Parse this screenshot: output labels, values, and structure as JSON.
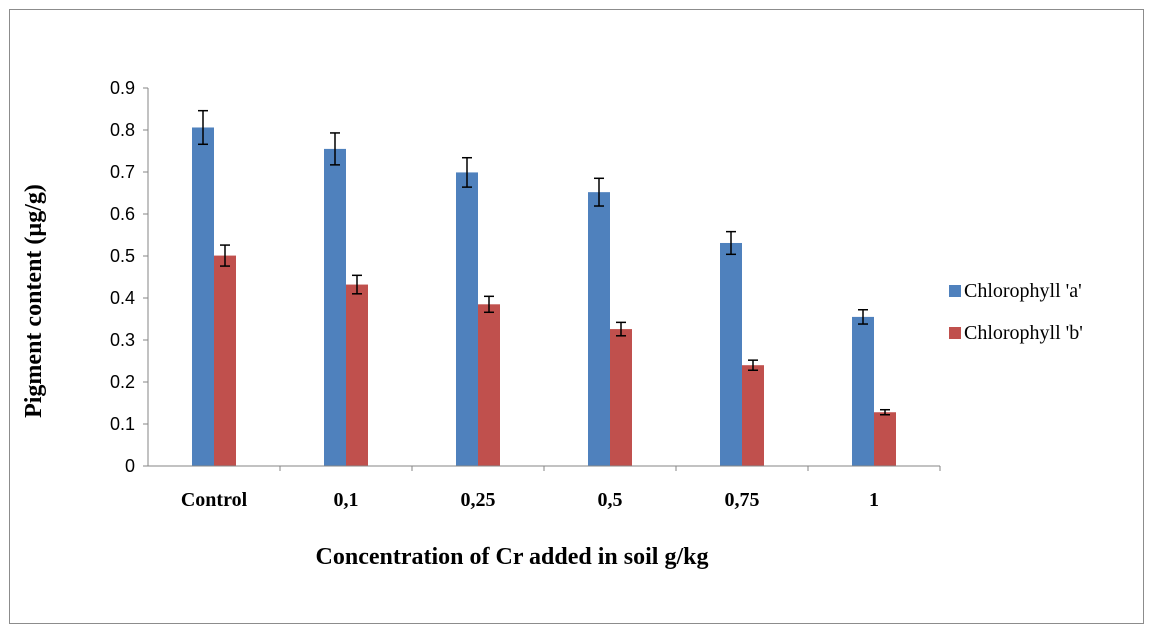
{
  "chart_data": {
    "type": "bar",
    "title": "",
    "xlabel": "Concentration of Cr added in soil g/kg",
    "ylabel": "Pigment content (µg/g)",
    "categories": [
      "Control",
      "0,1",
      "0,25",
      "0,5",
      "0,75",
      "1"
    ],
    "ylim": [
      0,
      0.9
    ],
    "yticks": [
      "0",
      "0.1",
      "0.2",
      "0.3",
      "0.4",
      "0.5",
      "0.6",
      "0.7",
      "0.8",
      "0.9"
    ],
    "grid": false,
    "legend_position": "right",
    "series": [
      {
        "name": "Chlorophyll 'a'",
        "color": "#4f81bd",
        "values": [
          0.806,
          0.755,
          0.699,
          0.652,
          0.531,
          0.355
        ],
        "errors": [
          0.04,
          0.038,
          0.035,
          0.033,
          0.027,
          0.017
        ]
      },
      {
        "name": "Chlorophyll 'b'",
        "color": "#c0504d",
        "values": [
          0.501,
          0.432,
          0.385,
          0.326,
          0.24,
          0.128
        ],
        "errors": [
          0.025,
          0.022,
          0.019,
          0.016,
          0.012,
          0.006
        ]
      }
    ]
  }
}
